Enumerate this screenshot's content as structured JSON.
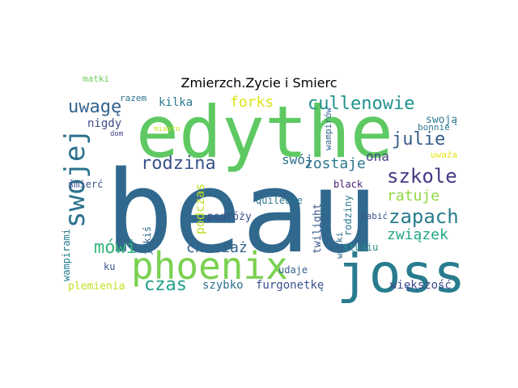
{
  "title": "Zmierzch.Zycie i Smierc",
  "words": [
    {
      "text": "beau",
      "color": "#31688e"
    },
    {
      "text": "edythe",
      "color": "#5ec962"
    },
    {
      "text": "joss",
      "color": "#287c8e"
    },
    {
      "text": "phoenix",
      "color": "#7ad151"
    },
    {
      "text": "swojej",
      "color": "#2c728e"
    },
    {
      "text": "cullenowie",
      "color": "#20938c"
    },
    {
      "text": "uwagę",
      "color": "#33638d"
    },
    {
      "text": "szkole",
      "color": "#443983"
    },
    {
      "text": "zapach",
      "color": "#287d8e"
    },
    {
      "text": "rodzina",
      "color": "#3b528b"
    },
    {
      "text": "julie",
      "color": "#365d8d"
    },
    {
      "text": "zostaje",
      "color": "#2a788e"
    },
    {
      "text": "ratuje",
      "color": "#8fd744"
    },
    {
      "text": "związek",
      "color": "#22a884"
    },
    {
      "text": "chociaż",
      "color": "#33638d"
    },
    {
      "text": "czas",
      "color": "#1f9e89"
    },
    {
      "text": "mówi",
      "color": "#35b779"
    },
    {
      "text": "kilka",
      "color": "#2a788e"
    },
    {
      "text": "forks",
      "color": "#dde318"
    },
    {
      "text": "nigdy",
      "color": "#3e4c8a"
    },
    {
      "text": "swój",
      "color": "#2e6e8e"
    },
    {
      "text": "ona",
      "color": "#414487"
    },
    {
      "text": "swoją",
      "color": "#2a788e"
    },
    {
      "text": "twilight",
      "color": "#39568c"
    },
    {
      "text": "podczas",
      "color": "#bddf26"
    },
    {
      "text": "podróży",
      "color": "#3b528b"
    },
    {
      "text": "quileute",
      "color": "#2a768e"
    },
    {
      "text": "furgonetkę",
      "color": "#3b528b"
    },
    {
      "text": "szybko",
      "color": "#2d708e"
    },
    {
      "text": "plemienia",
      "color": "#c8e020"
    },
    {
      "text": "wampirami",
      "color": "#287d8e"
    },
    {
      "text": "większość",
      "color": "#3e4a89"
    },
    {
      "text": "black",
      "color": "#482576"
    },
    {
      "text": "rodziny",
      "color": "#2a788e"
    },
    {
      "text": "ku",
      "color": "#3b528b"
    },
    {
      "text": "udaje",
      "color": "#355f8d"
    },
    {
      "text": "studiu",
      "color": "#21918c"
    },
    {
      "text": "razem",
      "color": "#2c718e"
    },
    {
      "text": "matki",
      "color": "#6ccd5a"
    },
    {
      "text": "wampirów",
      "color": "#31688e"
    },
    {
      "text": "bonnie",
      "color": "#2a788e"
    },
    {
      "text": "uważa",
      "color": "#e5e419"
    },
    {
      "text": "śmierć",
      "color": "#3d4e8a"
    },
    {
      "text": "zabić",
      "color": "#3b528b"
    },
    {
      "text": "jakiś",
      "color": "#2f6c8e"
    },
    {
      "text": "wilki",
      "color": "#2f6c8e"
    },
    {
      "text": "miasto",
      "color": "#cde11d"
    },
    {
      "text": "dom",
      "color": "#3f4889"
    }
  ]
}
